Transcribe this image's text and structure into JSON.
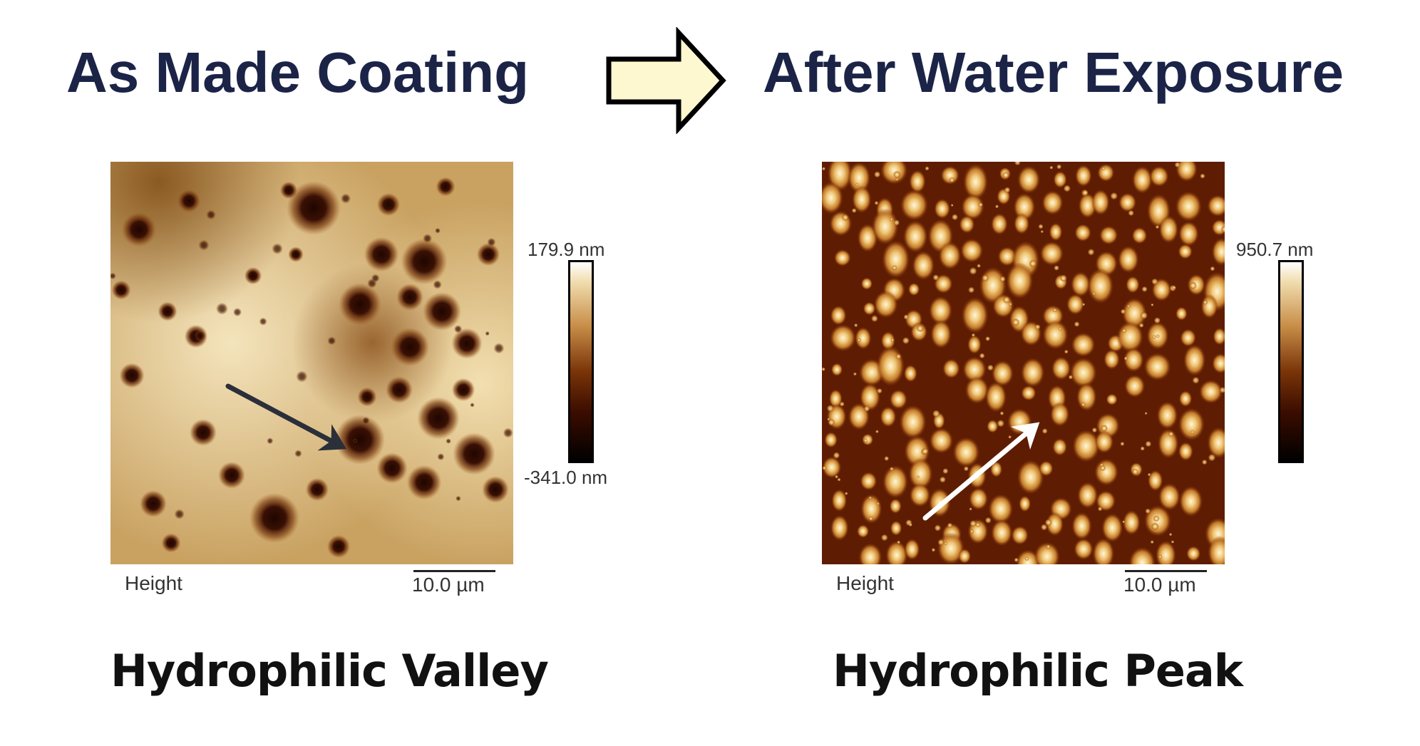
{
  "headings": {
    "left": "As Made Coating",
    "right": "After Water Exposure"
  },
  "panels": [
    {
      "colorbar_max": "179.9 nm",
      "colorbar_min": "-341.0 nm",
      "channel_label": "Height",
      "scale_label": "10.0 µm",
      "caption": "Hydrophilic Valley",
      "arrow_color": "#2a2f3a"
    },
    {
      "colorbar_max": "950.7 nm",
      "colorbar_min": "",
      "channel_label": "Height",
      "scale_label": "10.0 µm",
      "caption": "Hydrophilic Peak",
      "arrow_color": "#ffffff"
    }
  ],
  "colors": {
    "heading": "#1b2447",
    "process_arrow_fill": "#fdf8d0",
    "process_arrow_stroke": "#000000"
  }
}
